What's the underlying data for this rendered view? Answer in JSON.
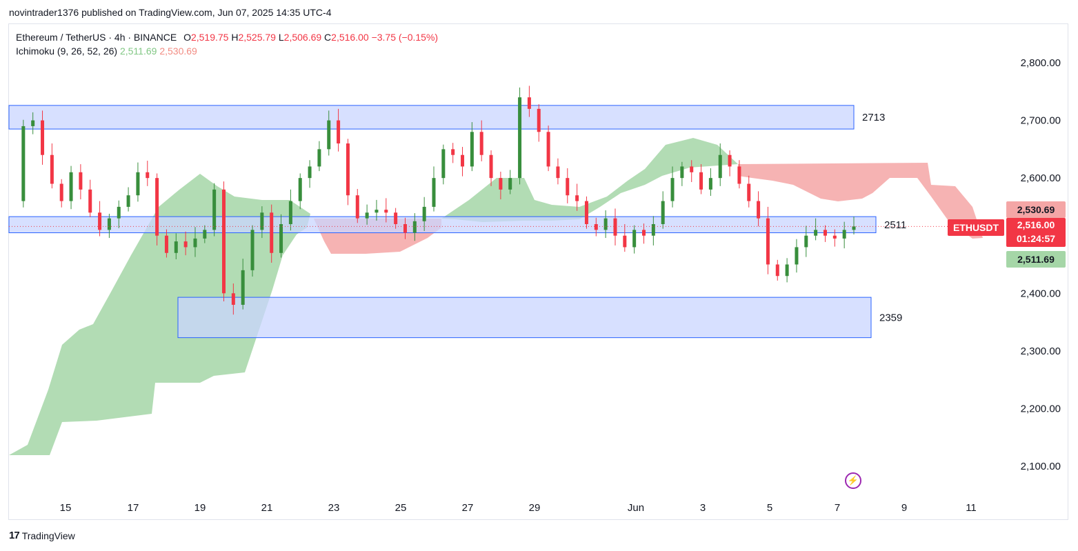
{
  "publisher": "novintrader1376 published on TradingView.com, Jun 07, 2025 14:35 UTC-4",
  "symbol": {
    "title": "Ethereum / TetherUS · 4h · BINANCE",
    "o_label": "O",
    "o_value": "2,519.75",
    "h_label": "H",
    "h_value": "2,525.79",
    "l_label": "L",
    "l_value": "2,506.69",
    "c_label": "C",
    "c_value": "2,516.00",
    "change": "−3.75 (−0.15%)"
  },
  "indicator": {
    "name": "Ichimoku (9, 26, 52, 26)",
    "value1": "2,511.69",
    "value2": "2,530.69"
  },
  "price_tags": {
    "ticker": "ETHUSDT",
    "upper": "2,530.69",
    "last": "2,516.00",
    "countdown": "01:24:57",
    "lower": "2,511.69"
  },
  "footer": {
    "logo_mark": "17",
    "brand": "TradingView"
  },
  "colors": {
    "up": "#26a69a",
    "candle_up": "#388e3c",
    "candle_down": "#f23645",
    "cloud_bull": "#a5d6a7",
    "cloud_bear": "#f4a6a6",
    "zone": "#c9d6ff",
    "zone_border": "#2962ff"
  },
  "chart_data": {
    "type": "candlestick",
    "symbol": "ETHUSDT",
    "timeframe": "4h",
    "y_ticks": [
      2800,
      2700,
      2600,
      2500,
      2400,
      2300,
      2200,
      2100
    ],
    "y_tick_labels": [
      "2,800.00",
      "2,700.00",
      "2,600.00",
      "2,500.00",
      "2,400.00",
      "2,300.00",
      "2,200.00",
      "2,100.00"
    ],
    "ylim": [
      2060,
      2860
    ],
    "x_tick_labels": [
      "15",
      "17",
      "19",
      "21",
      "23",
      "25",
      "27",
      "29",
      "Jun",
      "3",
      "5",
      "7",
      "9",
      "11"
    ],
    "zones": [
      {
        "label": "2713",
        "top": 2726,
        "bottom": 2685
      },
      {
        "label": "2511",
        "top": 2533,
        "bottom": 2505
      },
      {
        "label": "2359",
        "top": 2393,
        "bottom": 2323
      }
    ],
    "price_path": [
      2560,
      2690,
      2700,
      2640,
      2590,
      2560,
      2610,
      2580,
      2540,
      2510,
      2530,
      2550,
      2570,
      2610,
      2600,
      2500,
      2470,
      2490,
      2480,
      2495,
      2510,
      2580,
      2400,
      2380,
      2440,
      2510,
      2540,
      2470,
      2520,
      2560,
      2600,
      2620,
      2650,
      2700,
      2660,
      2570,
      2530,
      2540,
      2545,
      2540,
      2520,
      2505,
      2525,
      2550,
      2600,
      2650,
      2640,
      2620,
      2680,
      2640,
      2600,
      2580,
      2600,
      2740,
      2720,
      2680,
      2620,
      2600,
      2570,
      2560,
      2520,
      2510,
      2530,
      2500,
      2480,
      2510,
      2500,
      2520,
      2560,
      2600,
      2620,
      2610,
      2580,
      2600,
      2640,
      2620,
      2590,
      2560,
      2530,
      2450,
      2430,
      2450,
      2480,
      2500,
      2510,
      2500,
      2495,
      2510,
      2516
    ]
  }
}
